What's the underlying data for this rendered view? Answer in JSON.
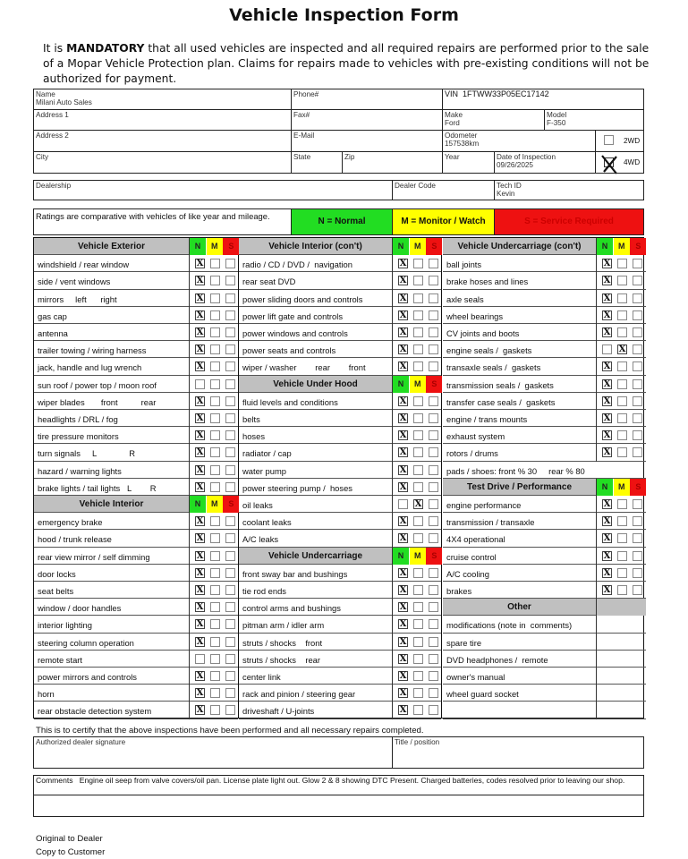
{
  "title": "Vehicle Inspection Form",
  "intro": {
    "pre": "It is ",
    "bold": "MANDATORY",
    "post": " that all used vehicles are inspected and all required repairs are performed prior to the sale of a Mopar Vehicle Protection plan. Claims for repairs made to vehicles with pre-existing conditions will not be authorized for payment."
  },
  "info": {
    "name": {
      "label": "Name",
      "value": "Milani Auto Sales"
    },
    "phone": {
      "label": "Phone#",
      "value": ""
    },
    "vin": {
      "label": "VIN",
      "value": "1FTWW33P05EC17142"
    },
    "address1": {
      "label": "Address 1",
      "value": ""
    },
    "fax": {
      "label": "Fax#",
      "value": ""
    },
    "make": {
      "label": "Make",
      "value": "Ford"
    },
    "model": {
      "label": "Model",
      "value": "F-350"
    },
    "address2": {
      "label": "Address 2",
      "value": ""
    },
    "email": {
      "label": "E-Mail",
      "value": ""
    },
    "odometer": {
      "label": "Odometer",
      "value": "157538km"
    },
    "drive_2wd": {
      "label": "2WD",
      "checked": false
    },
    "city": {
      "label": "City",
      "value": ""
    },
    "state": {
      "label": "State",
      "value": ""
    },
    "zip": {
      "label": "Zip",
      "value": ""
    },
    "year": {
      "label": "Year",
      "value": ""
    },
    "date": {
      "label": "Date of Inspection",
      "value": "09/26/2025"
    },
    "drive_4wd": {
      "label": "4WD",
      "checked": true
    },
    "dealership": {
      "label": "Dealership",
      "value": ""
    },
    "dealer_code": {
      "label": "Dealer Code",
      "value": ""
    },
    "tech_id": {
      "label": "Tech ID",
      "value": "Kevin"
    }
  },
  "ratings": {
    "note": "Ratings are comparative with vehicles of like year and mileage.",
    "normal": "N = Normal",
    "monitor": "M = Monitor / Watch",
    "service": "S = Service Required",
    "colors": {
      "N": "#22dd22",
      "M": "#ffff00",
      "S": "#ee1111"
    },
    "letters": [
      "N",
      "M",
      "S"
    ]
  },
  "columns": [
    [
      {
        "type": "header",
        "label": "Vehicle Exterior"
      },
      {
        "label": "windshield / rear window",
        "rating": "N"
      },
      {
        "label": "side / vent windows",
        "rating": "N"
      },
      {
        "label": "mirrors     left      right",
        "rating": "N"
      },
      {
        "label": "gas cap",
        "rating": "N"
      },
      {
        "label": "antenna",
        "rating": "N"
      },
      {
        "label": "trailer towing / wiring harness",
        "rating": "N"
      },
      {
        "label": "jack, handle and lug wrench",
        "rating": "N"
      },
      {
        "label": "sun roof / power top / moon roof",
        "rating": ""
      },
      {
        "label": "wiper blades       front          rear",
        "rating": "N"
      },
      {
        "label": "headlights / DRL / fog",
        "rating": "N"
      },
      {
        "label": "tire pressure monitors",
        "rating": "N"
      },
      {
        "label": "turn signals     L              R",
        "rating": "N"
      },
      {
        "label": "hazard / warning lights",
        "rating": "N"
      },
      {
        "label": "brake lights / tail lights   L        R",
        "rating": "N"
      },
      {
        "type": "header",
        "label": "Vehicle Interior"
      },
      {
        "label": "emergency brake",
        "rating": "N"
      },
      {
        "label": "hood / trunk release",
        "rating": "N"
      },
      {
        "label": "rear view mirror / self dimming",
        "rating": "N"
      },
      {
        "label": "door locks",
        "rating": "N"
      },
      {
        "label": "seat belts",
        "rating": "N"
      },
      {
        "label": "window / door handles",
        "rating": "N"
      },
      {
        "label": "interior lighting",
        "rating": "N"
      },
      {
        "label": "steering column operation",
        "rating": "N"
      },
      {
        "label": "remote start",
        "rating": ""
      },
      {
        "label": "power mirrors and controls",
        "rating": "N"
      },
      {
        "label": "horn",
        "rating": "N"
      },
      {
        "label": "rear obstacle detection system",
        "rating": "N"
      }
    ],
    [
      {
        "type": "header",
        "label": "Vehicle Interior (con't)"
      },
      {
        "label": "radio / CD / DVD /  navigation",
        "rating": "N"
      },
      {
        "label": "rear seat DVD",
        "rating": "N"
      },
      {
        "label": "power sliding doors and controls",
        "rating": "N"
      },
      {
        "label": "power lift gate and controls",
        "rating": "N"
      },
      {
        "label": "power windows and controls",
        "rating": "N"
      },
      {
        "label": "power seats and controls",
        "rating": "N"
      },
      {
        "label": "wiper / washer        rear        front",
        "rating": "N"
      },
      {
        "type": "header",
        "label": "Vehicle Under Hood"
      },
      {
        "label": "fluid levels and conditions",
        "rating": "N"
      },
      {
        "label": "belts",
        "rating": "N"
      },
      {
        "label": "hoses",
        "rating": "N"
      },
      {
        "label": "radiator / cap",
        "rating": "N"
      },
      {
        "label": "water pump",
        "rating": "N"
      },
      {
        "label": "power steering pump /  hoses",
        "rating": "N"
      },
      {
        "label": "oil leaks",
        "rating": "M"
      },
      {
        "label": "coolant leaks",
        "rating": "N"
      },
      {
        "label": "A/C leaks",
        "rating": "N"
      },
      {
        "type": "header",
        "label": "Vehicle Undercarriage"
      },
      {
        "label": "front sway bar and bushings",
        "rating": "N"
      },
      {
        "label": "tie rod ends",
        "rating": "N"
      },
      {
        "label": "control arms and bushings",
        "rating": "N"
      },
      {
        "label": "pitman arm / idler arm",
        "rating": "N"
      },
      {
        "label": "struts / shocks    front",
        "rating": "N"
      },
      {
        "label": "struts / shocks    rear",
        "rating": "N"
      },
      {
        "label": "center link",
        "rating": "N"
      },
      {
        "label": "rack and pinion / steering gear",
        "rating": "N"
      },
      {
        "label": "driveshaft / U-joints",
        "rating": "N"
      }
    ],
    [
      {
        "type": "header",
        "label": "Vehicle Undercarriage (con't)"
      },
      {
        "label": "ball joints",
        "rating": "N"
      },
      {
        "label": "brake hoses and lines",
        "rating": "N"
      },
      {
        "label": "axle seals",
        "rating": "N"
      },
      {
        "label": "wheel bearings",
        "rating": "N"
      },
      {
        "label": "CV joints and boots",
        "rating": "N"
      },
      {
        "label": "engine seals /  gaskets",
        "rating": "M"
      },
      {
        "label": "transaxle seals /  gaskets",
        "rating": "N"
      },
      {
        "label": "transmission seals /  gaskets",
        "rating": "N"
      },
      {
        "label": "transfer case seals /  gaskets",
        "rating": "N"
      },
      {
        "label": "engine / trans mounts",
        "rating": "N"
      },
      {
        "label": "exhaust system",
        "rating": "N"
      },
      {
        "label": "rotors / drums",
        "rating": "N"
      },
      {
        "type": "note",
        "label": "pads / shoes: front % 30     rear % 80"
      },
      {
        "type": "header",
        "label": "Test Drive / Performance"
      },
      {
        "label": "engine performance",
        "rating": "N"
      },
      {
        "label": "transmission / transaxle",
        "rating": "N"
      },
      {
        "label": "4X4 operational",
        "rating": "N"
      },
      {
        "label": "cruise control",
        "rating": "N"
      },
      {
        "label": "A/C cooling",
        "rating": "N"
      },
      {
        "label": "brakes",
        "rating": "N"
      },
      {
        "type": "header2",
        "label": "Other"
      },
      {
        "type": "plain",
        "label": "modifications (note in  comments)"
      },
      {
        "type": "plain",
        "label": "spare tire"
      },
      {
        "type": "plain",
        "label": "DVD headphones /  remote"
      },
      {
        "type": "plain",
        "label": "owner's manual"
      },
      {
        "type": "plain",
        "label": "wheel guard socket"
      },
      {
        "type": "plain",
        "label": ""
      }
    ]
  ],
  "certify": "This is to certify that the above inspections have been performed and all necessary repairs completed.",
  "signature_label": "Authorized dealer  signature",
  "title_label": "Title / position",
  "comments": {
    "label": "Comments",
    "value": "Engine oil seep from valve covers/oil pan.  License plate light out. Glow 2 & 8 showing DTC Present.  Charged batteries, codes resolved prior to leaving our shop."
  },
  "footer": [
    "Original to Dealer",
    "Copy to Customer"
  ]
}
